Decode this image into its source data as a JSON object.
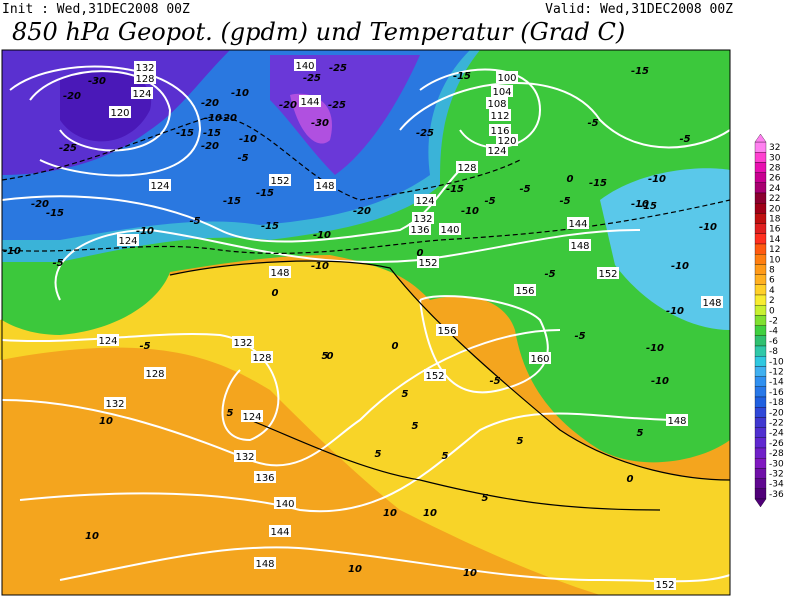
{
  "header": {
    "init": "Init : Wed,31DEC2008 00Z",
    "valid": "Valid: Wed,31DEC2008 00Z",
    "title": "850 hPa Geopot. (gpdm) und Temperatur (Grad C)"
  },
  "colorbar": {
    "levels": [
      32,
      30,
      28,
      26,
      24,
      22,
      20,
      18,
      16,
      14,
      12,
      10,
      8,
      6,
      4,
      2,
      0,
      -2,
      -4,
      -6,
      -8,
      -10,
      -12,
      -14,
      -16,
      -18,
      -20,
      -22,
      -24,
      -26,
      -28,
      -30,
      -32,
      -34,
      -36
    ],
    "colors": [
      "#ff80f0",
      "#ff40d0",
      "#e810b0",
      "#c80090",
      "#a80070",
      "#8c0030",
      "#a00018",
      "#c01010",
      "#e02020",
      "#ff3020",
      "#ff5a10",
      "#ff7e10",
      "#ff9a18",
      "#ffb020",
      "#ffd028",
      "#f8ec30",
      "#c8f030",
      "#80e030",
      "#40d040",
      "#30c070",
      "#30c8a8",
      "#30c8e0",
      "#40b0f0",
      "#3090f0",
      "#2878e8",
      "#2060e0",
      "#3048d8",
      "#4038d0",
      "#5030d0",
      "#6028d0",
      "#7020c8",
      "#8018c0",
      "#7010a8",
      "#600890",
      "#500078"
    ]
  },
  "geopotential_labels": [
    132,
    128,
    124,
    120,
    140,
    144,
    100,
    104,
    108,
    112,
    116,
    120,
    124,
    128,
    124,
    132,
    136,
    140,
    152,
    148,
    124,
    124,
    148,
    152,
    144,
    148,
    152,
    156,
    156,
    160,
    152,
    148,
    148,
    124,
    128,
    132,
    128,
    132,
    124,
    132,
    136,
    140,
    144,
    148,
    152
  ],
  "temperature_labels": [
    -30,
    -20,
    -25,
    -15,
    -20,
    -10,
    -15,
    -10,
    -20,
    -20,
    -10,
    -5,
    -25,
    -25,
    -20,
    -25,
    -30,
    -25,
    -15,
    -20,
    -15,
    -15,
    -10,
    -15,
    -20,
    -5,
    -10,
    -15,
    -10,
    -10,
    -15,
    -5,
    -5,
    0,
    -5,
    -5,
    0,
    -5,
    -10,
    -5,
    -10,
    -15,
    -10,
    -10,
    -5,
    -10,
    -15,
    -10,
    -10,
    -10,
    -15,
    -5,
    0,
    0,
    -5,
    5,
    5,
    5,
    10,
    5,
    10,
    10,
    10,
    10,
    5,
    5,
    0,
    -5,
    5,
    0,
    5,
    10,
    5
  ]
}
